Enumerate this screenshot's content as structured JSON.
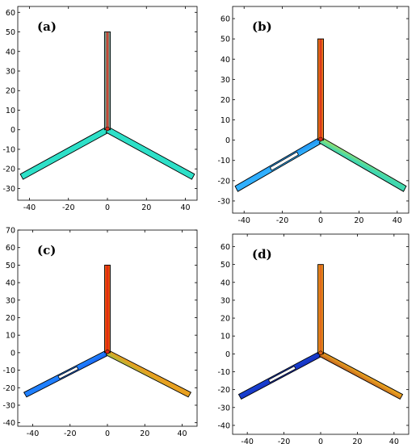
{
  "panels": [
    {
      "label": "(a)",
      "x_ticks": [
        -40,
        -20,
        0,
        20,
        40
      ],
      "y_ticks": [
        -30,
        -20,
        -10,
        0,
        10,
        20,
        30,
        40,
        50,
        60
      ],
      "xlim": [
        -46,
        46
      ],
      "ylim": [
        -36,
        63
      ],
      "arms": {
        "vertical": [
          "#4ad0c0",
          "#d83020",
          "#4ad0c0"
        ],
        "left": [
          "#2ee0c8",
          "#2ee0c8"
        ],
        "right": [
          "#2ee0c8",
          "#2ee0c8"
        ]
      },
      "gap": null
    },
    {
      "label": "(b)",
      "x_ticks": [
        -40,
        -20,
        0,
        20,
        40
      ],
      "y_ticks": [
        -30,
        -20,
        -10,
        0,
        10,
        20,
        30,
        40,
        50,
        60
      ],
      "xlim": [
        -46,
        46
      ],
      "ylim": [
        -36,
        66
      ],
      "arms": {
        "vertical": [
          "#f0a020",
          "#d82818",
          "#f0a020"
        ],
        "left": [
          "#30b0ff",
          "#2090f0"
        ],
        "right": [
          "#a8e060",
          "#40d8b0"
        ]
      },
      "gap": [
        -26,
        -12
      ]
    },
    {
      "label": "(c)",
      "x_ticks": [
        -40,
        -20,
        0,
        20,
        40
      ],
      "y_ticks": [
        -40,
        -30,
        -20,
        -10,
        0,
        10,
        20,
        30,
        40,
        50,
        60,
        70
      ],
      "xlim": [
        -48,
        48
      ],
      "ylim": [
        -42,
        70
      ],
      "arms": {
        "vertical": [
          "#f07010",
          "#e02010",
          "#f07010"
        ],
        "left": [
          "#1860f0",
          "#2080ff"
        ],
        "right": [
          "#e8a020",
          "#a0c040"
        ]
      },
      "gap": [
        -26,
        -16
      ]
    },
    {
      "label": "(d)",
      "x_ticks": [
        -40,
        -20,
        0,
        20,
        40
      ],
      "y_ticks": [
        -40,
        -30,
        -20,
        -10,
        0,
        10,
        20,
        30,
        40,
        50,
        60
      ],
      "xlim": [
        -48,
        48
      ],
      "ylim": [
        -45,
        67
      ],
      "arms": {
        "vertical": [
          "#e8a020",
          "#e06018",
          "#e8a020"
        ],
        "left": [
          "#1830c0",
          "#1840d0"
        ],
        "right": [
          "#e8a020",
          "#c06020"
        ]
      },
      "gap": [
        -28,
        -14
      ]
    }
  ]
}
